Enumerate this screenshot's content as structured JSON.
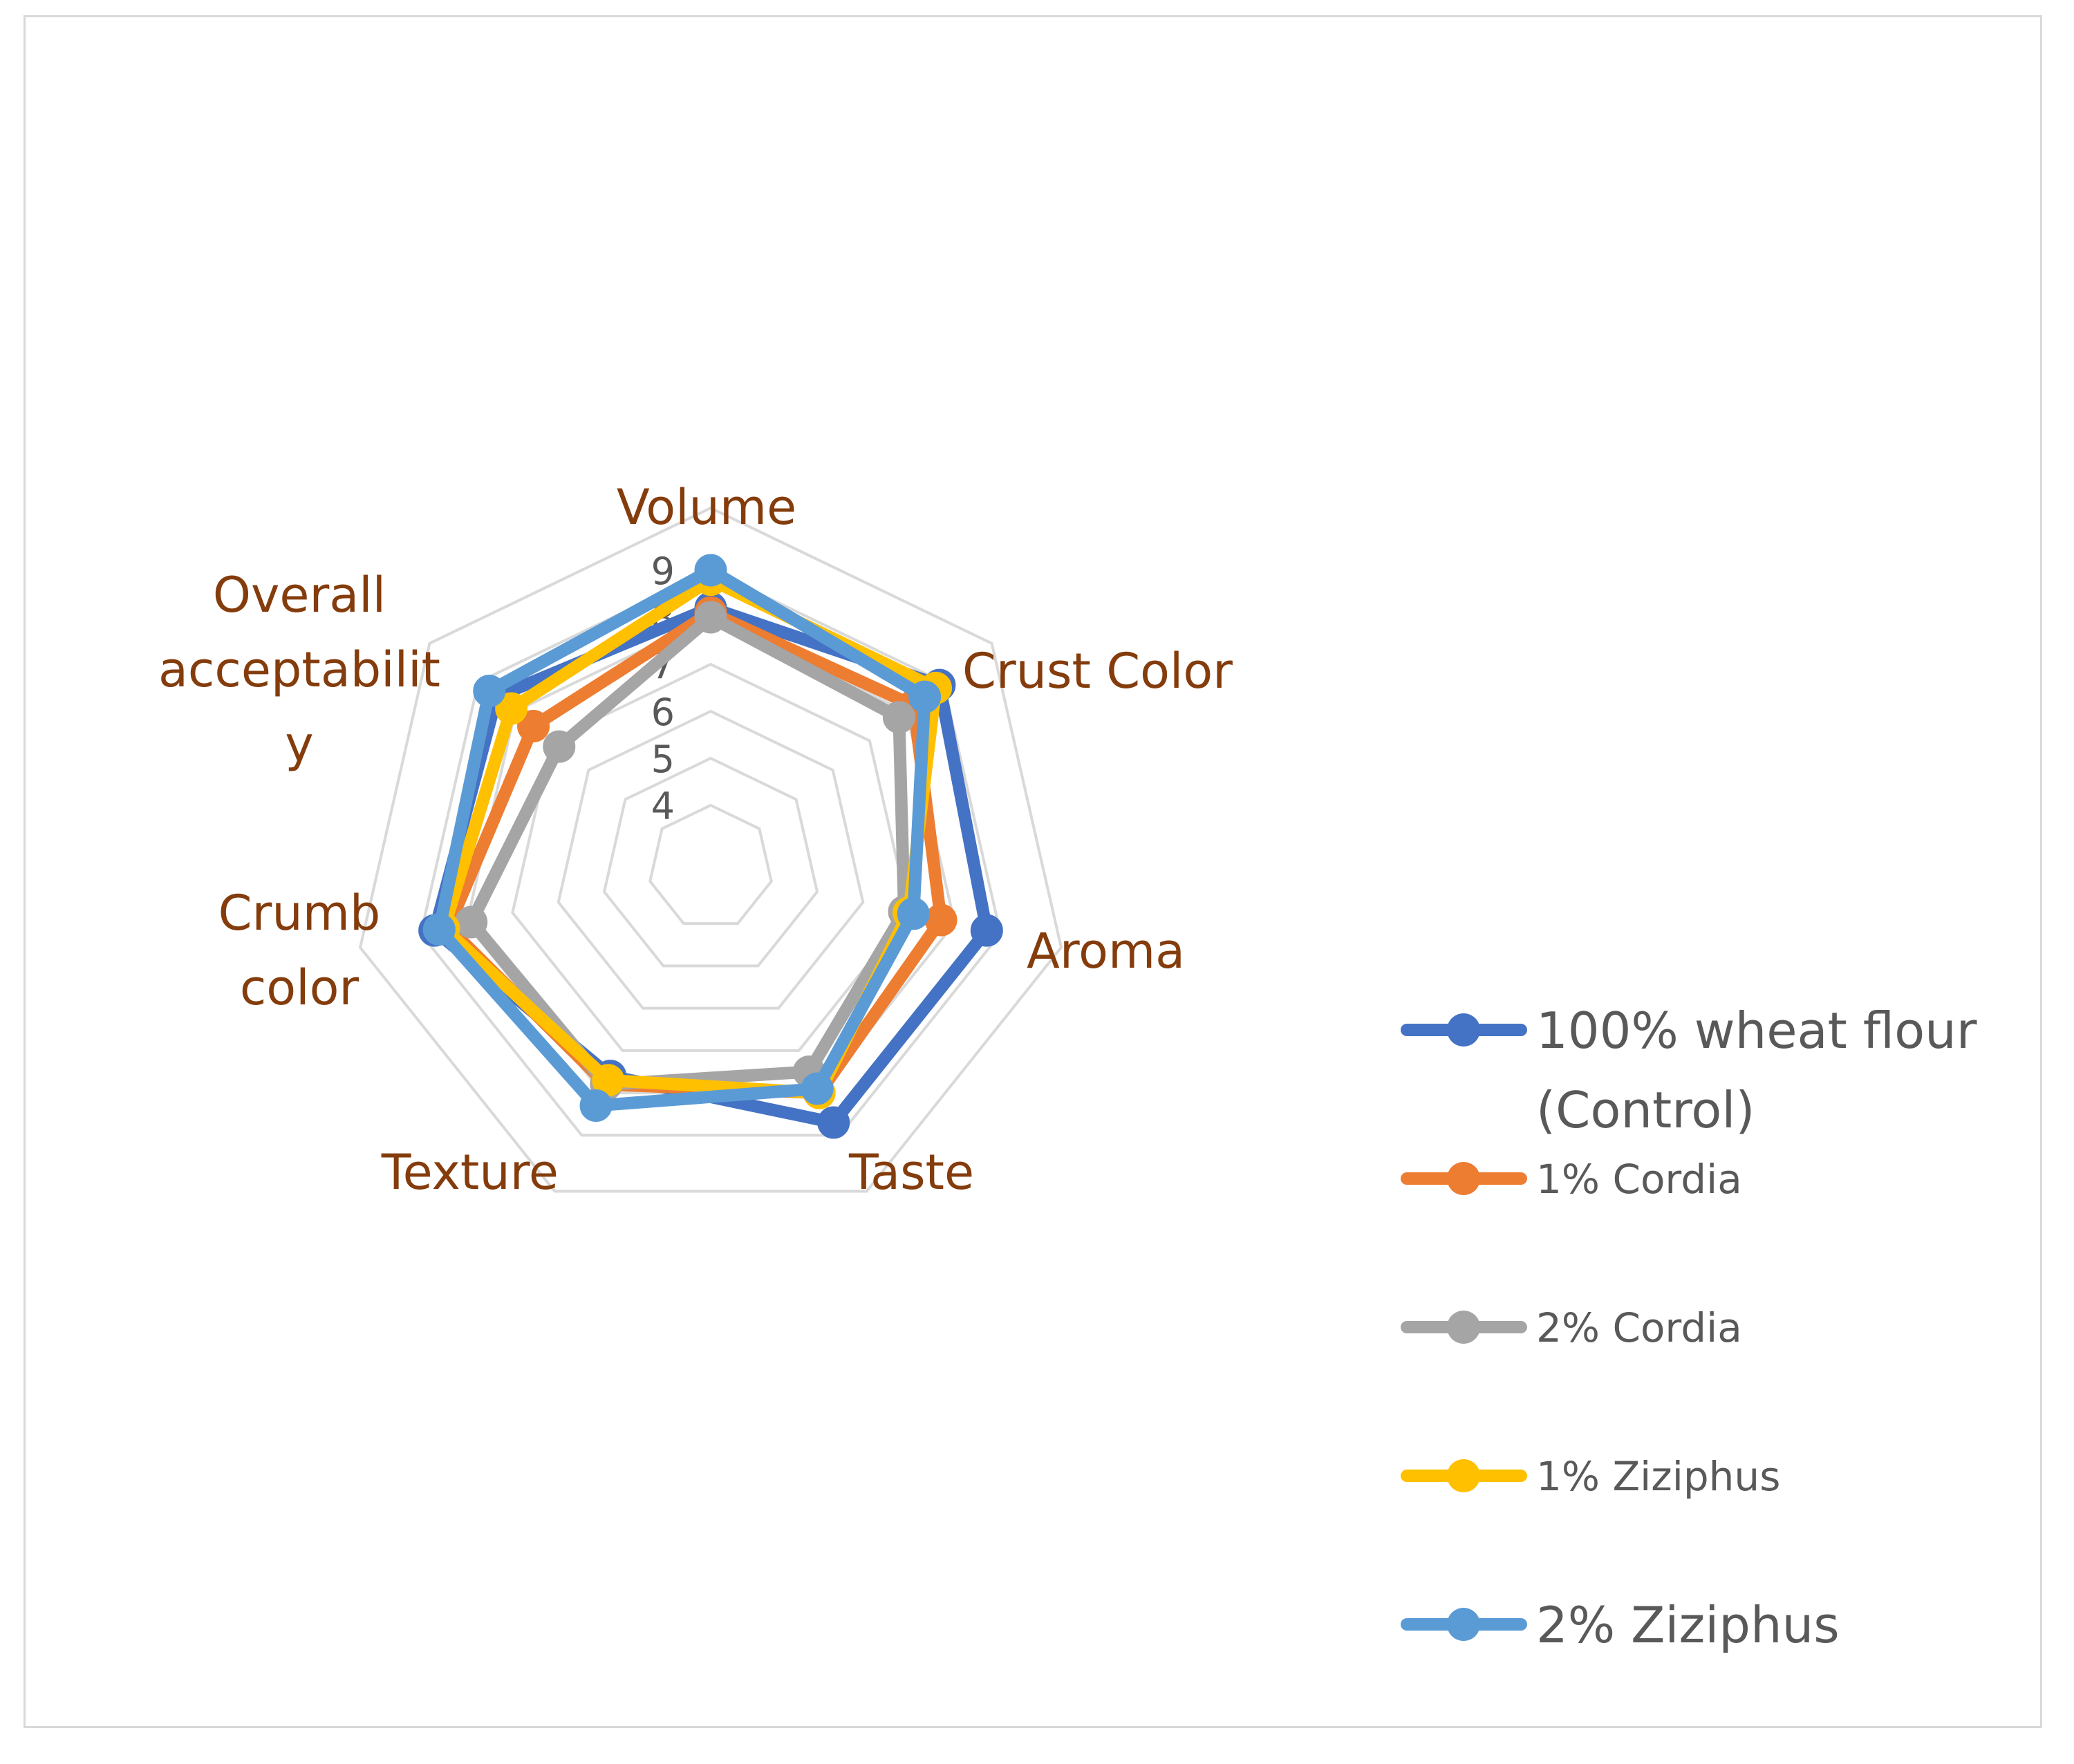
{
  "chart_data": {
    "type": "radar",
    "title": "",
    "categories": [
      "Volume",
      "Crust Color",
      "Aroma",
      "Taste",
      "Texture",
      "Crumb color",
      "Overall acceptability"
    ],
    "category_labels": [
      [
        "Volume"
      ],
      [
        "Crust Color"
      ],
      [
        "Aroma"
      ],
      [
        "Taste"
      ],
      [
        "Texture"
      ],
      [
        "Crumb",
        "color"
      ],
      [
        "Overall",
        "acceptabilit",
        "y"
      ]
    ],
    "radial_range": [
      4,
      9
    ],
    "ticks": [
      "4",
      "5",
      "6",
      "7",
      "8",
      "9"
    ],
    "grid": true,
    "legend_position": "right",
    "series": [
      {
        "name": "100% wheat flour (Control)",
        "name_lines": [
          "100% wheat flour",
          "(Control)"
        ],
        "color": "#4472c4",
        "values": [
          8.2,
          8.9,
          8.7,
          8.7,
          7.6,
          8.7,
          8.5
        ]
      },
      {
        "name": "1% Cordia",
        "name_lines": [
          "1% Cordia"
        ],
        "color": "#ed7d31",
        "values": [
          8.1,
          8.2,
          7.7,
          8.0,
          7.8,
          8.4,
          7.5
        ]
      },
      {
        "name": "2% Cordia",
        "name_lines": [
          "2% Cordia"
        ],
        "color": "#a5a5a5",
        "values": [
          8.0,
          7.8,
          6.9,
          7.5,
          7.8,
          7.9,
          6.8
        ]
      },
      {
        "name": "1% Ziziphus",
        "name_lines": [
          "1% Ziziphus"
        ],
        "color": "#ffc000",
        "values": [
          8.8,
          8.8,
          7.0,
          8.0,
          7.7,
          8.5,
          8.1
        ]
      },
      {
        "name": "2% Ziziphus",
        "name_lines": [
          "2% Ziziphus"
        ],
        "color": "#5b9bd5",
        "values": [
          9.0,
          8.5,
          7.1,
          7.9,
          8.3,
          8.6,
          8.7
        ]
      }
    ]
  }
}
